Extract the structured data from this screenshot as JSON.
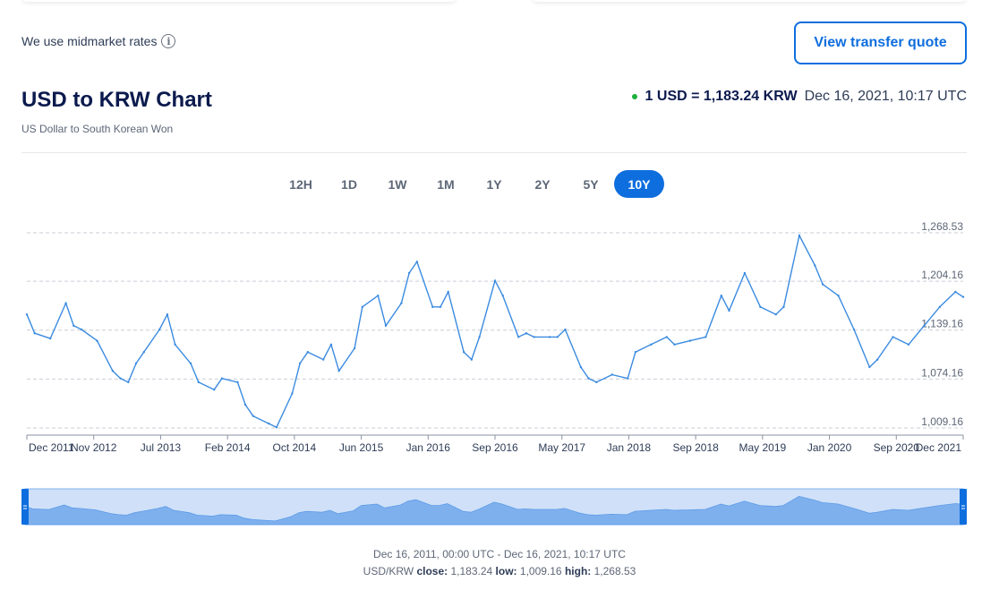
{
  "header": {
    "midmarket_text": "We use midmarket rates",
    "info_icon": "info-icon",
    "quote_button": "View transfer quote"
  },
  "title": "USD to KRW Chart",
  "subtitle": "US Dollar to South Korean Won",
  "rate": {
    "text": "1 USD = 1,183.24 KRW",
    "time": "Dec 16, 2021, 10:17 UTC",
    "status_color": "#1daf3b"
  },
  "ranges": [
    "12H",
    "1D",
    "1W",
    "1M",
    "1Y",
    "2Y",
    "5Y",
    "10Y"
  ],
  "active_range": "10Y",
  "colors": {
    "accent": "#0e6ede",
    "line": "#3b8be0",
    "navigator_fill": "#7fb0ee"
  },
  "chart_data": {
    "type": "line",
    "series": [
      {
        "x": [
          "2011-12",
          "2012-01",
          "2012-03",
          "2012-05",
          "2012-06",
          "2012-07",
          "2012-09",
          "2012-11",
          "2012-12",
          "2013-01",
          "2013-02",
          "2013-03",
          "2013-05",
          "2013-06",
          "2013-07",
          "2013-09",
          "2013-10",
          "2013-12",
          "2014-01",
          "2014-03",
          "2014-04",
          "2014-05",
          "2014-07",
          "2014-08",
          "2014-10",
          "2014-11",
          "2014-12",
          "2015-02",
          "2015-03",
          "2015-04",
          "2015-06",
          "2015-07",
          "2015-09",
          "2015-10",
          "2015-12",
          "2016-01",
          "2016-02",
          "2016-04",
          "2016-05",
          "2016-06",
          "2016-08",
          "2016-09",
          "2016-10",
          "2016-12",
          "2017-01",
          "2017-03",
          "2017-04",
          "2017-05",
          "2017-07",
          "2017-08",
          "2017-09",
          "2017-11",
          "2017-12",
          "2018-01",
          "2018-03",
          "2018-05",
          "2018-06",
          "2018-08",
          "2018-10",
          "2018-11",
          "2019-01",
          "2019-03",
          "2019-05",
          "2019-06",
          "2019-08",
          "2019-10",
          "2019-12",
          "2020-01",
          "2020-03",
          "2020-05",
          "2020-06",
          "2020-08",
          "2020-10",
          "2020-12",
          "2021-01",
          "2021-03",
          "2021-05",
          "2021-07",
          "2021-09",
          "2021-11",
          "2021-12"
        ],
        "values": [
          1160,
          1135,
          1128,
          1175,
          1145,
          1140,
          1125,
          1085,
          1075,
          1070,
          1095,
          1110,
          1140,
          1160,
          1120,
          1095,
          1070,
          1060,
          1075,
          1070,
          1040,
          1025,
          1015,
          1010,
          1055,
          1095,
          1110,
          1100,
          1120,
          1085,
          1115,
          1170,
          1185,
          1145,
          1175,
          1215,
          1230,
          1170,
          1170,
          1190,
          1110,
          1100,
          1130,
          1205,
          1185,
          1130,
          1135,
          1130,
          1130,
          1130,
          1140,
          1090,
          1075,
          1070,
          1080,
          1075,
          1110,
          1120,
          1130,
          1120,
          1125,
          1130,
          1185,
          1165,
          1215,
          1170,
          1160,
          1170,
          1265,
          1225,
          1200,
          1185,
          1140,
          1090,
          1100,
          1130,
          1120,
          1145,
          1170,
          1190,
          1183.24
        ]
      }
    ],
    "x_tick_labels": [
      "Dec 2011",
      "Nov 2012",
      "Jul 2013",
      "Feb 2014",
      "Oct 2014",
      "Jun 2015",
      "Jan 2016",
      "Sep 2016",
      "May 2017",
      "Jan 2018",
      "Sep 2018",
      "May 2019",
      "Jan 2020",
      "Sep 2020",
      "Dec 2021"
    ],
    "y_tick_labels": [
      "1,268.53",
      "1,204.16",
      "1,139.16",
      "1,074.16",
      "1,009.16"
    ],
    "y_ticks": [
      1268.53,
      1204.16,
      1139.16,
      1074.16,
      1009.16
    ],
    "ylim": [
      1009.16,
      1268.53
    ],
    "grid": "horizontal-dashed",
    "legend": "none"
  },
  "footer": {
    "range": "Dec 16, 2011, 00:00 UTC - Dec 16, 2021, 10:17 UTC",
    "pair": "USD/KRW",
    "close_label": "close:",
    "close": "1,183.24",
    "low_label": "low:",
    "low": "1,009.16",
    "high_label": "high:",
    "high": "1,268.53"
  }
}
